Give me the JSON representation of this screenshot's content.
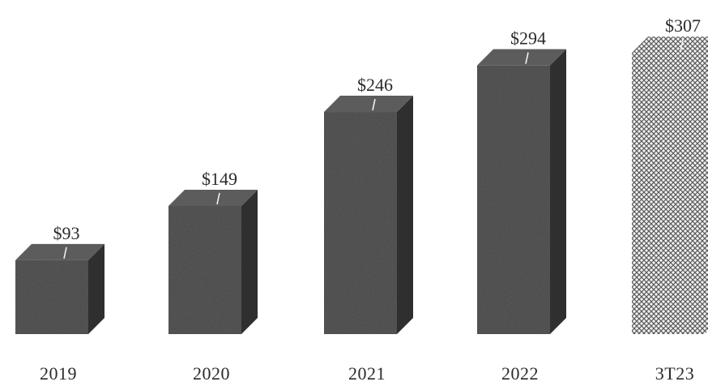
{
  "chart_data": {
    "type": "bar",
    "categories": [
      "2019",
      "2020",
      "2021",
      "2022",
      "3T23"
    ],
    "values": [
      93,
      149,
      246,
      294,
      307
    ],
    "data_labels": [
      "$93",
      "$149",
      "$246",
      "$294",
      "$307"
    ],
    "title": "",
    "xlabel": "",
    "ylabel": "",
    "ylim": [
      0,
      320
    ],
    "grid": false,
    "legend": "none",
    "style": "3d-box",
    "highlight_last": true
  },
  "colors": {
    "bar_front": "#474747",
    "bar_top": "#5c5c5c",
    "bar_side": "#2f2f2f",
    "hatch_stroke": "#5a5a5a",
    "hatch_bg": "#f2f2f2",
    "text": "#2b2b2b",
    "leader": "#f0f0f0"
  }
}
